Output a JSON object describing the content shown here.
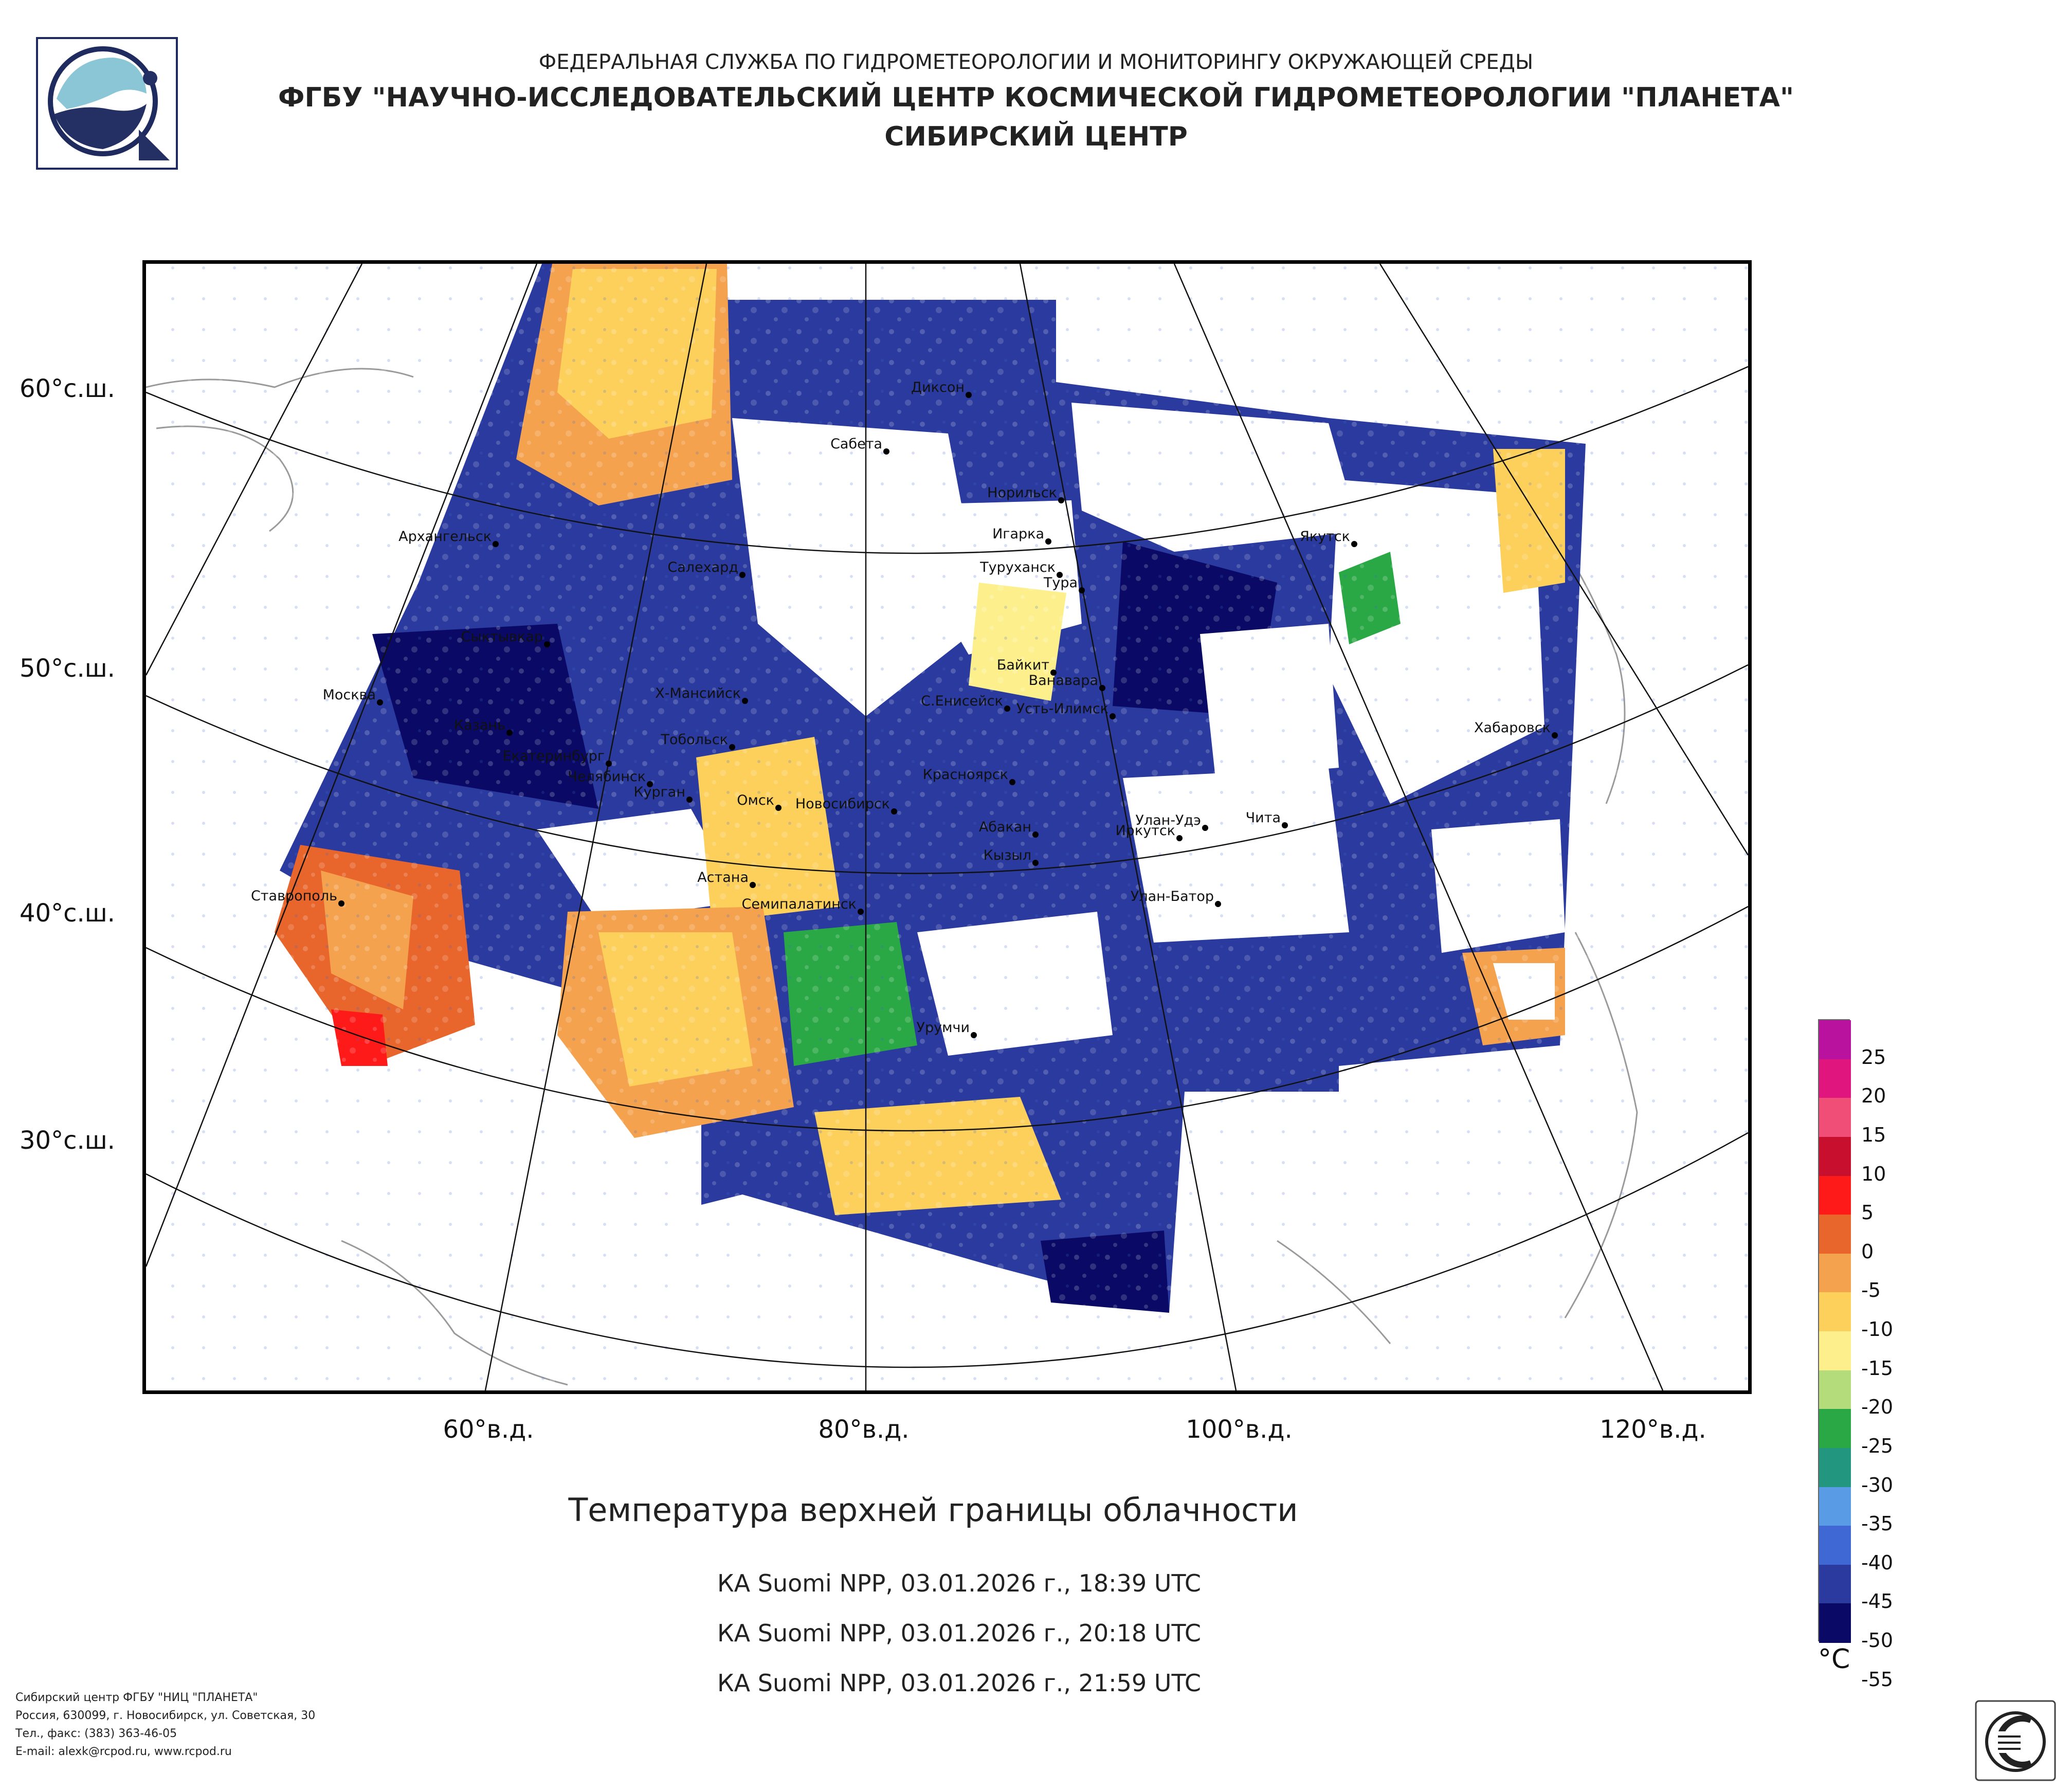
{
  "header": {
    "line1": "ФЕДЕРАЛЬНАЯ СЛУЖБА ПО ГИДРОМЕТЕОРОЛОГИИ И МОНИТОРИНГУ ОКРУЖАЮЩЕЙ СРЕДЫ",
    "line2": "ФГБУ \"НАУЧНО-ИССЛЕДОВАТЕЛЬСКИЙ ЦЕНТР КОСМИЧЕСКОЙ ГИДРОМЕТЕОРОЛОГИИ \"ПЛАНЕТА\"",
    "line3": "СИБИРСКИЙ ЦЕНТР"
  },
  "map": {
    "lat_labels": [
      "60°с.ш.",
      "50°с.ш.",
      "40°с.ш.",
      "30°с.ш."
    ],
    "lon_labels": [
      "60°в.д.",
      "80°в.д.",
      "100°в.д.",
      "120°в.д."
    ],
    "cities": [
      {
        "name": "Диксон"
      },
      {
        "name": "Сабета"
      },
      {
        "name": "Норильск"
      },
      {
        "name": "Игарка"
      },
      {
        "name": "Архангельск"
      },
      {
        "name": "Салехард"
      },
      {
        "name": "Туруханск"
      },
      {
        "name": "Тура"
      },
      {
        "name": "Якутск"
      },
      {
        "name": "Сыктывкар"
      },
      {
        "name": "Байкит"
      },
      {
        "name": "Ванавара"
      },
      {
        "name": "Москва"
      },
      {
        "name": "Х-Мансийск"
      },
      {
        "name": "С.Енисейск"
      },
      {
        "name": "Усть-Илимск"
      },
      {
        "name": "Хабаровск"
      },
      {
        "name": "Казань"
      },
      {
        "name": "Тобольск"
      },
      {
        "name": "Екатеринбург"
      },
      {
        "name": "Челябинск"
      },
      {
        "name": "Курган"
      },
      {
        "name": "Красноярск"
      },
      {
        "name": "Омск"
      },
      {
        "name": "Новосибирск"
      },
      {
        "name": "Чита"
      },
      {
        "name": "Абакан"
      },
      {
        "name": "Улан-Удэ"
      },
      {
        "name": "Иркутск"
      },
      {
        "name": "Кызыл"
      },
      {
        "name": "Астана"
      },
      {
        "name": "Улан-Батор"
      },
      {
        "name": "Ставрополь"
      },
      {
        "name": "Семипалатинск"
      },
      {
        "name": "Урумчи"
      }
    ]
  },
  "legend": {
    "unit": "°C",
    "bins": [
      {
        "color": "#b8129e"
      },
      {
        "color": "#e0157e"
      },
      {
        "color": "#f04d77"
      },
      {
        "color": "#c8102e"
      },
      {
        "color": "#ff1a1a"
      },
      {
        "color": "#e8652b"
      },
      {
        "color": "#f4a24e"
      },
      {
        "color": "#fdd05c"
      },
      {
        "color": "#fdf08c"
      },
      {
        "color": "#b5dc7a"
      },
      {
        "color": "#2aa845"
      },
      {
        "color": "#22967f"
      },
      {
        "color": "#5a9be6"
      },
      {
        "color": "#3f68d4"
      },
      {
        "color": "#2a3a9e"
      },
      {
        "color": "#0a0a66"
      }
    ],
    "ticks": [
      "25",
      "20",
      "15",
      "10",
      "5",
      "0",
      "-5",
      "-10",
      "-15",
      "-20",
      "-25",
      "-30",
      "-35",
      "-40",
      "-45",
      "-50",
      "-55"
    ]
  },
  "product_title": "Температура верхней границы облачности",
  "passes": [
    "КА Suomi NPP, 03.01.2026 г., 18:39 UTC",
    "КА Suomi NPP, 03.01.2026 г., 20:18 UTC",
    "КА Suomi NPP, 03.01.2026 г., 21:59 UTC"
  ],
  "footer": {
    "line1": "Сибирский центр ФГБУ \"НИЦ \"ПЛАНЕТА\"",
    "line2": "Россия, 630099, г. Новосибирск, ул. Советская, 30",
    "line3": "Тел., факс: (383) 363-46-05",
    "line4": "E-mail: alexk@rcpod.ru, www.rcpod.ru"
  }
}
